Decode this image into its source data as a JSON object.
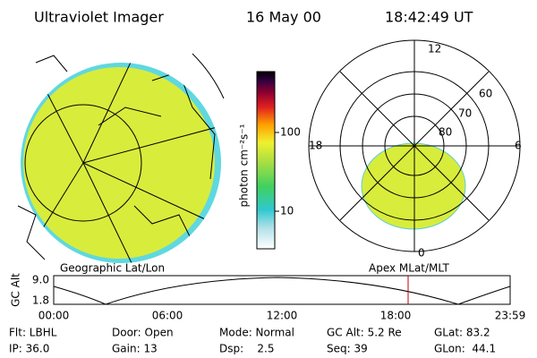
{
  "header": {
    "title": "Ultraviolet Imager",
    "date": "16 May 00",
    "time": "18:42:49 UT"
  },
  "colorbar": {
    "label": "photon cm⁻²s⁻¹",
    "ticks": [
      "100",
      "10"
    ]
  },
  "polar": {
    "labels": [
      "12",
      "60",
      "70",
      "80",
      "18",
      "6",
      "0"
    ]
  },
  "captions": {
    "left": "Geographic Lat/Lon",
    "right": "Apex MLat/MLT"
  },
  "altitude": {
    "label": "GC Alt",
    "ticks": [
      "9.0",
      "1.8"
    ],
    "times": [
      "00:00",
      "06:00",
      "12:00",
      "18:00",
      "23:59"
    ]
  },
  "footer": {
    "rows": [
      [
        "Flt: LBHL",
        "Door: Open",
        "Mode: Normal",
        "GC Alt: 5.2 Re",
        "GLat: 83.2"
      ],
      [
        "IP: 36.0",
        "Gain: 13",
        "Dsp:    2.5",
        "Seq: 39",
        "GLon:  44.1"
      ]
    ]
  }
}
